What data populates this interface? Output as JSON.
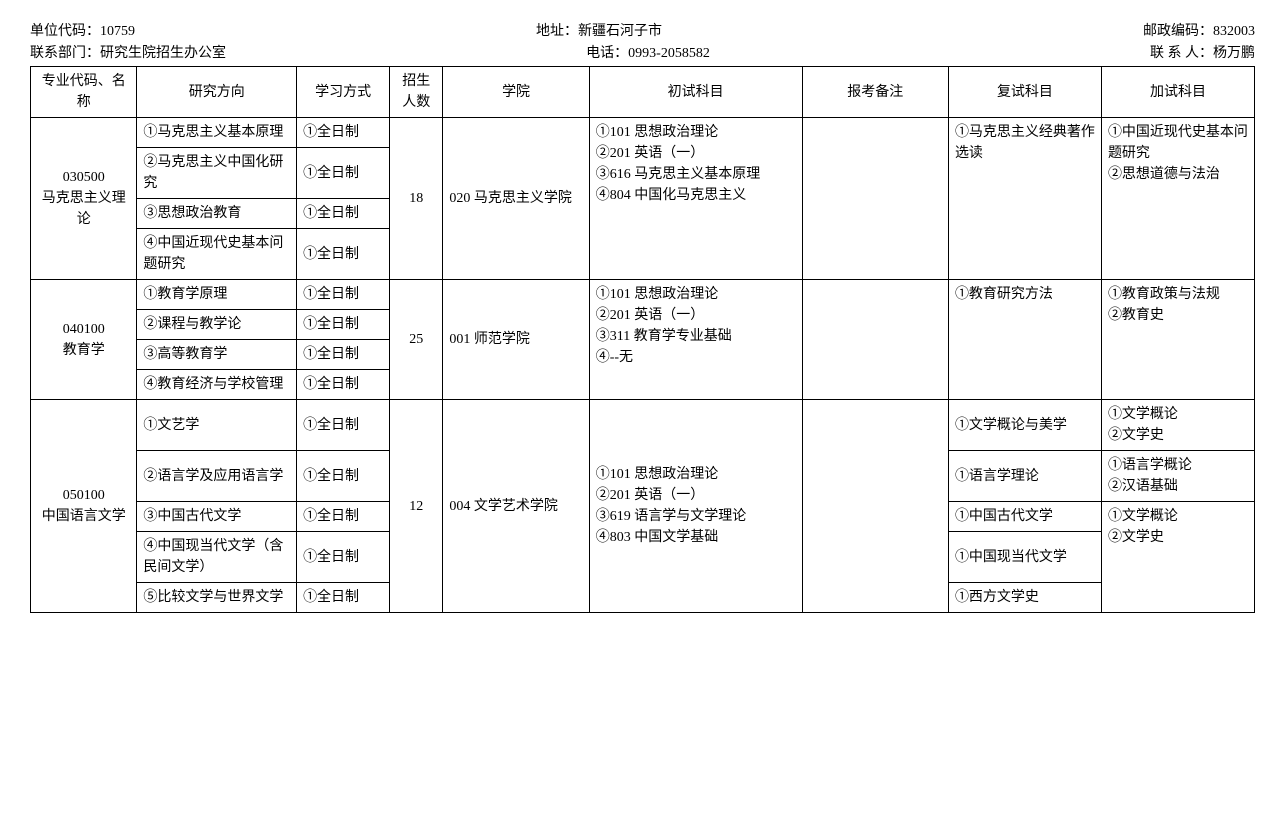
{
  "header": {
    "unit_code_label": "单位代码：",
    "unit_code": "10759",
    "address_label": "地址：",
    "address": "新疆石河子市",
    "postcode_label": "邮政编码：",
    "postcode": "832003",
    "dept_label": "联系部门：",
    "dept": "研究生院招生办公室",
    "phone_label": "电话：",
    "phone": "0993-2058582",
    "contact_label": "联 系 人：",
    "contact": "杨万鹏"
  },
  "columns": {
    "major": "专业代码、名　　称",
    "direction": "研究方向",
    "mode": "学习方式",
    "num": "招生人数",
    "school": "学院",
    "exam1": "初试科目",
    "note": "报考备注",
    "exam2": "复试科目",
    "exam3": "加试科目"
  },
  "r1": {
    "major": "030500\n马克思主义理论",
    "dir1": "①马克思主义基本原理",
    "dir2": "②马克思主义中国化研究",
    "dir3": "③思想政治教育",
    "dir4": "④中国近现代史基本问题研究",
    "mode": "①全日制",
    "num": "18",
    "school": "020 马克思主义学院",
    "exam1": "①101 思想政治理论\n②201 英语（一）\n③616 马克思主义基本原理\n④804 中国化马克思主义",
    "note": "",
    "exam2": "①马克思主义经典著作选读",
    "exam3": "①中国近现代史基本问题研究\n②思想道德与法治"
  },
  "r2": {
    "major": "040100\n教育学",
    "dir1": "①教育学原理",
    "dir2": "②课程与教学论",
    "dir3": "③高等教育学",
    "dir4": "④教育经济与学校管理",
    "mode": "①全日制",
    "num": "25",
    "school": "001 师范学院",
    "exam1": "①101 思想政治理论\n②201 英语（一）\n③311 教育学专业基础\n④--无",
    "note": "",
    "exam2": "①教育研究方法",
    "exam3": "①教育政策与法规\n②教育史"
  },
  "r3": {
    "major": "050100\n中国语言文学",
    "dir1": "①文艺学",
    "dir2": "②语言学及应用语言学",
    "dir3": "③中国古代文学",
    "dir4": "④中国现当代文学（含民间文学）",
    "dir5": "⑤比较文学与世界文学",
    "mode": "①全日制",
    "num": "12",
    "school": "004 文学艺术学院",
    "exam1": "①101 思想政治理论\n②201 英语（一）\n③619 语言学与文学理论\n④803 中国文学基础",
    "note": "",
    "exam2_1": "①文学概论与美学",
    "exam2_2": "①语言学理论",
    "exam2_3": "①中国古代文学",
    "exam2_4": "①中国现当代文学",
    "exam2_5": "①西方文学史",
    "exam3_1": "①文学概论\n②文学史",
    "exam3_2": "①语言学概论\n②汉语基础",
    "exam3_3": "①文学概论\n②文学史"
  }
}
